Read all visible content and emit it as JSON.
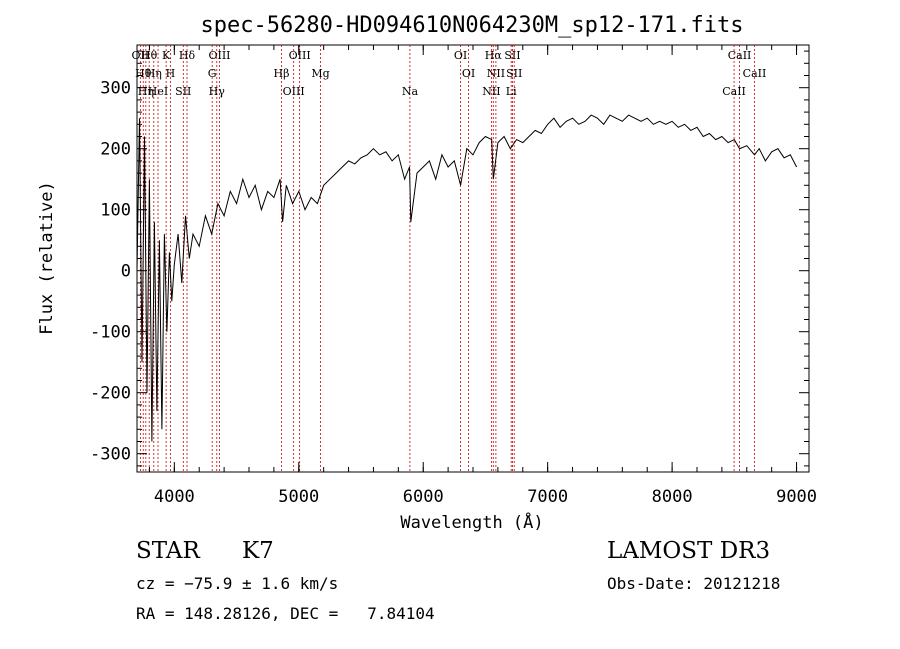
{
  "chart_data": {
    "type": "line",
    "title": "spec-56280-HD094610N064230M_sp12-171.fits",
    "xlabel": "Wavelength (Å)",
    "ylabel": "Flux (relative)",
    "xlim": [
      3700,
      9100
    ],
    "ylim": [
      -330,
      370
    ],
    "xticks": [
      4000,
      5000,
      6000,
      7000,
      8000,
      9000
    ],
    "yticks": [
      -300,
      -200,
      -100,
      0,
      100,
      200,
      300
    ],
    "grid": false,
    "series": [
      {
        "name": "flux",
        "x": [
          3700,
          3720,
          3740,
          3760,
          3780,
          3800,
          3820,
          3840,
          3860,
          3880,
          3900,
          3920,
          3940,
          3960,
          3980,
          4000,
          4030,
          4060,
          4090,
          4120,
          4150,
          4200,
          4250,
          4300,
          4350,
          4400,
          4450,
          4500,
          4550,
          4600,
          4650,
          4700,
          4750,
          4800,
          4850,
          4870,
          4900,
          4950,
          5000,
          5050,
          5100,
          5150,
          5200,
          5250,
          5300,
          5350,
          5400,
          5450,
          5500,
          5550,
          5600,
          5650,
          5700,
          5750,
          5800,
          5850,
          5890,
          5900,
          5950,
          6000,
          6050,
          6100,
          6150,
          6200,
          6250,
          6300,
          6350,
          6400,
          6450,
          6500,
          6550,
          6563,
          6600,
          6650,
          6700,
          6750,
          6800,
          6850,
          6900,
          6950,
          7000,
          7050,
          7100,
          7150,
          7200,
          7250,
          7300,
          7350,
          7400,
          7450,
          7500,
          7550,
          7600,
          7650,
          7700,
          7750,
          7800,
          7850,
          7900,
          7950,
          8000,
          8050,
          8100,
          8150,
          8200,
          8250,
          8300,
          8350,
          8400,
          8450,
          8500,
          8542,
          8600,
          8662,
          8700,
          8750,
          8800,
          8850,
          8900,
          8950,
          9000
        ],
        "y": [
          0,
          250,
          -150,
          220,
          -200,
          150,
          -280,
          80,
          -230,
          50,
          -260,
          60,
          -100,
          30,
          -50,
          10,
          60,
          -20,
          90,
          20,
          60,
          40,
          90,
          60,
          110,
          90,
          130,
          110,
          150,
          120,
          140,
          100,
          130,
          120,
          150,
          80,
          140,
          110,
          130,
          100,
          120,
          110,
          140,
          150,
          160,
          170,
          180,
          175,
          185,
          190,
          200,
          190,
          195,
          180,
          190,
          150,
          170,
          80,
          160,
          170,
          180,
          150,
          190,
          170,
          180,
          140,
          200,
          190,
          210,
          220,
          215,
          150,
          210,
          220,
          200,
          215,
          210,
          220,
          230,
          225,
          240,
          250,
          235,
          245,
          250,
          240,
          245,
          255,
          250,
          240,
          255,
          250,
          245,
          255,
          250,
          245,
          250,
          240,
          245,
          240,
          245,
          235,
          240,
          230,
          235,
          220,
          225,
          215,
          220,
          210,
          215,
          200,
          205,
          190,
          200,
          180,
          195,
          200,
          185,
          190,
          170
        ]
      }
    ],
    "lines": [
      {
        "x": 3727,
        "label": "OII"
      },
      {
        "x": 3750,
        "label": "Hθ"
      },
      {
        "x": 3771,
        "label": "Hη"
      },
      {
        "x": 3798,
        "label": "Hθ"
      },
      {
        "x": 3835,
        "label": "Hη"
      },
      {
        "x": 3869,
        "label": "HeI"
      },
      {
        "x": 3934,
        "label": "K"
      },
      {
        "x": 3969,
        "label": "H"
      },
      {
        "x": 4072,
        "label": "SII"
      },
      {
        "x": 4102,
        "label": "Hδ"
      },
      {
        "x": 4304,
        "label": "G"
      },
      {
        "x": 4341,
        "label": "Hγ"
      },
      {
        "x": 4363,
        "label": "OIII"
      },
      {
        "x": 4861,
        "label": "Hβ"
      },
      {
        "x": 4959,
        "label": "OIII"
      },
      {
        "x": 5007,
        "label": "OIII"
      },
      {
        "x": 5175,
        "label": "Mg"
      },
      {
        "x": 5893,
        "label": "Na"
      },
      {
        "x": 6300,
        "label": "OI"
      },
      {
        "x": 6364,
        "label": "OI"
      },
      {
        "x": 6548,
        "label": "NII"
      },
      {
        "x": 6563,
        "label": "Hα"
      },
      {
        "x": 6584,
        "label": "NII"
      },
      {
        "x": 6707,
        "label": "Li"
      },
      {
        "x": 6717,
        "label": "SII"
      },
      {
        "x": 6731,
        "label": "SII"
      },
      {
        "x": 8498,
        "label": "CaII"
      },
      {
        "x": 8542,
        "label": "CaII"
      },
      {
        "x": 8662,
        "label": "CaII"
      }
    ],
    "line_color": "#cc0000",
    "data_color": "#000000"
  },
  "info": {
    "class_label": "STAR",
    "subclass": "K7",
    "survey": "LAMOST DR3",
    "cz_line": "cz = −75.9 ± 1.6 km/s",
    "obs_date": "Obs-Date: 20121218",
    "coords": "RA = 148.28126, DEC =   7.84104"
  }
}
